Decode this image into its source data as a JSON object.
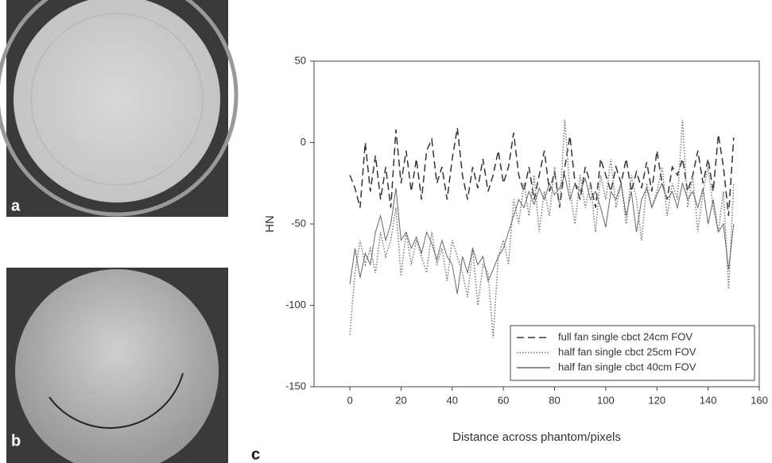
{
  "panels": [
    "a",
    "b",
    "c"
  ],
  "chart_data": {
    "type": "line",
    "xlabel": "Distance across phantom/pixels",
    "ylabel": "HN",
    "xlim": [
      -14,
      160
    ],
    "ylim": [
      -150,
      50
    ],
    "xticks": [
      0,
      20,
      40,
      60,
      80,
      100,
      120,
      140,
      160
    ],
    "yticks": [
      -150,
      -100,
      -50,
      0,
      50
    ],
    "legend": "lower right",
    "x": [
      0,
      2,
      4,
      6,
      8,
      10,
      12,
      14,
      16,
      18,
      20,
      22,
      24,
      26,
      28,
      30,
      32,
      34,
      36,
      38,
      40,
      42,
      44,
      46,
      48,
      50,
      52,
      54,
      56,
      58,
      60,
      62,
      64,
      66,
      68,
      70,
      72,
      74,
      76,
      78,
      80,
      82,
      84,
      86,
      88,
      90,
      92,
      94,
      96,
      98,
      100,
      102,
      104,
      106,
      108,
      110,
      112,
      114,
      116,
      118,
      120,
      122,
      124,
      126,
      128,
      130,
      132,
      134,
      136,
      138,
      140,
      142,
      144,
      146,
      148,
      150
    ],
    "series": [
      {
        "name": "full fan single cbct 24cm FOV",
        "color": "#333333",
        "style": "dashed",
        "values": [
          -20,
          -28,
          -40,
          0,
          -30,
          -8,
          -35,
          -15,
          -40,
          8,
          -25,
          -5,
          -30,
          -10,
          -35,
          -5,
          2,
          -25,
          -15,
          -35,
          -10,
          9,
          -20,
          -35,
          -15,
          -28,
          -10,
          -30,
          -20,
          -5,
          -25,
          -15,
          6,
          -20,
          -30,
          -15,
          -35,
          -20,
          -5,
          -30,
          -18,
          -40,
          -15,
          4,
          -25,
          -35,
          -15,
          -25,
          -40,
          -10,
          -20,
          -30,
          -15,
          -25,
          -10,
          -30,
          -18,
          -28,
          -12,
          -30,
          -5,
          -25,
          -35,
          -15,
          -20,
          -10,
          -30,
          -20,
          -5,
          -25,
          -10,
          -30,
          5,
          -15,
          -45,
          3
        ]
      },
      {
        "name": "half fan single cbct 25cm FOV",
        "color": "#777777",
        "style": "dotted",
        "values": [
          -118,
          -80,
          -60,
          -75,
          -65,
          -80,
          -55,
          -70,
          -60,
          -40,
          -82,
          -55,
          -75,
          -60,
          -70,
          -80,
          -55,
          -75,
          -65,
          -85,
          -60,
          -70,
          -80,
          -95,
          -65,
          -100,
          -75,
          -80,
          -120,
          -70,
          -60,
          -75,
          -35,
          -50,
          -25,
          -45,
          -20,
          -55,
          -30,
          -45,
          -15,
          -40,
          14,
          -30,
          -50,
          -20,
          -40,
          -25,
          -55,
          -20,
          -35,
          -10,
          -40,
          -25,
          -50,
          -20,
          -35,
          -60,
          -25,
          -40,
          -30,
          -15,
          -45,
          -25,
          -35,
          14,
          -40,
          -20,
          -55,
          -30,
          -15,
          -40,
          -55,
          -30,
          -90,
          -25
        ]
      },
      {
        "name": "half fan single cbct 40cm FOV",
        "color": "#666666",
        "style": "solid",
        "values": [
          -87,
          -65,
          -83,
          -68,
          -75,
          -55,
          -45,
          -60,
          -50,
          -28,
          -60,
          -55,
          -65,
          -58,
          -68,
          -55,
          -62,
          -72,
          -60,
          -70,
          -75,
          -93,
          -70,
          -80,
          -65,
          -75,
          -70,
          -85,
          -78,
          -70,
          -65,
          -55,
          -45,
          -35,
          -40,
          -30,
          -38,
          -28,
          -35,
          -25,
          -32,
          -28,
          -20,
          -35,
          -25,
          -30,
          -22,
          -35,
          -30,
          -40,
          -52,
          -30,
          -35,
          -25,
          -45,
          -30,
          -55,
          -35,
          -28,
          -40,
          -32,
          -25,
          -35,
          -30,
          -40,
          -25,
          -35,
          -30,
          -40,
          -28,
          -50,
          -35,
          -55,
          -50,
          -78,
          -50
        ]
      }
    ]
  }
}
